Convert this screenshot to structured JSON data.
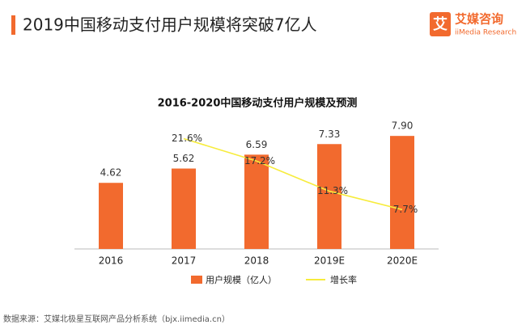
{
  "header": {
    "title": "2019中国移动支付用户规模将突破7亿人",
    "logo_icon": "艾",
    "logo": "艾媒咨询",
    "logo_sub": "iiMedia Research"
  },
  "chart_data": {
    "type": "bar",
    "title": "2016-2020中国移动支付用户规模及预测",
    "categories": [
      "2016",
      "2017",
      "2018",
      "2019E",
      "2020E"
    ],
    "series": [
      {
        "name": "用户规模（亿人）",
        "type": "bar",
        "color": "#f26a2e",
        "values": [
          4.62,
          5.62,
          6.59,
          7.33,
          7.9
        ],
        "value_labels": [
          "4.62",
          "5.62",
          "6.59",
          "7.33",
          "7.90"
        ]
      },
      {
        "name": "增长率",
        "type": "line",
        "axis": "y2",
        "color": "#f7ec3c",
        "values": [
          null,
          21.6,
          17.2,
          11.3,
          7.7
        ],
        "value_labels": [
          null,
          "21.6%",
          "17.2%",
          "11.3%",
          "7.7%"
        ]
      }
    ],
    "ylim": [
      0,
      10
    ],
    "y2lim": [
      0,
      28
    ]
  },
  "footer": {
    "source": "数据来源：艾媒北极星互联网产品分析系统（bjx.iimedia.cn）"
  }
}
